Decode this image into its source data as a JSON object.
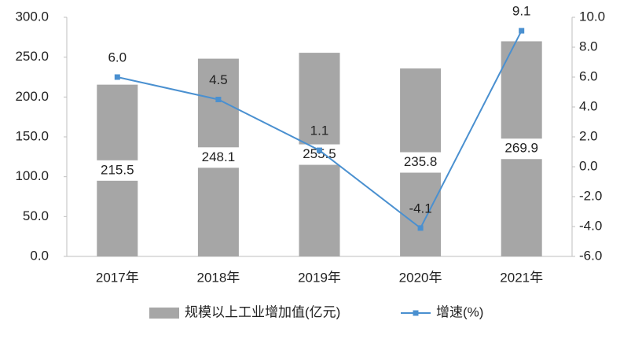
{
  "chart_data": {
    "type": "combo",
    "categories": [
      "2017年",
      "2018年",
      "2019年",
      "2020年",
      "2021年"
    ],
    "series": [
      {
        "name": "规模以上工业增加值(亿元)",
        "type": "bar",
        "color": "#a6a6a6",
        "values": [
          215.5,
          248.1,
          255.5,
          235.8,
          269.9
        ]
      },
      {
        "name": "增速(%)",
        "type": "line",
        "axis": "y2",
        "color": "#4a90d0",
        "values": [
          6.0,
          4.5,
          1.1,
          -4.1,
          9.1
        ],
        "value_labels": [
          "6.0",
          "4.5",
          "1.1",
          "-4.1",
          "9.1"
        ]
      }
    ],
    "ylim": [
      0,
      300
    ],
    "yticks": [
      {
        "value": 0,
        "label": "0.0"
      },
      {
        "value": 50,
        "label": "50.0"
      },
      {
        "value": 100,
        "label": "100.0"
      },
      {
        "value": 150,
        "label": "150.0"
      },
      {
        "value": 200,
        "label": "200.0"
      },
      {
        "value": 250,
        "label": "250.0"
      },
      {
        "value": 300,
        "label": "300.0"
      }
    ],
    "y2lim": [
      -6,
      10
    ],
    "y2ticks": [
      {
        "value": -6,
        "label": "-6.0"
      },
      {
        "value": -4,
        "label": "-4.0"
      },
      {
        "value": -2,
        "label": "-2.0"
      },
      {
        "value": 0,
        "label": "0.0"
      },
      {
        "value": 2,
        "label": "2.0"
      },
      {
        "value": 4,
        "label": "4.0"
      },
      {
        "value": 6,
        "label": "6.0"
      },
      {
        "value": 8,
        "label": "8.0"
      },
      {
        "value": 10,
        "label": "10.0"
      }
    ],
    "grid": false,
    "legend": "bottom"
  }
}
